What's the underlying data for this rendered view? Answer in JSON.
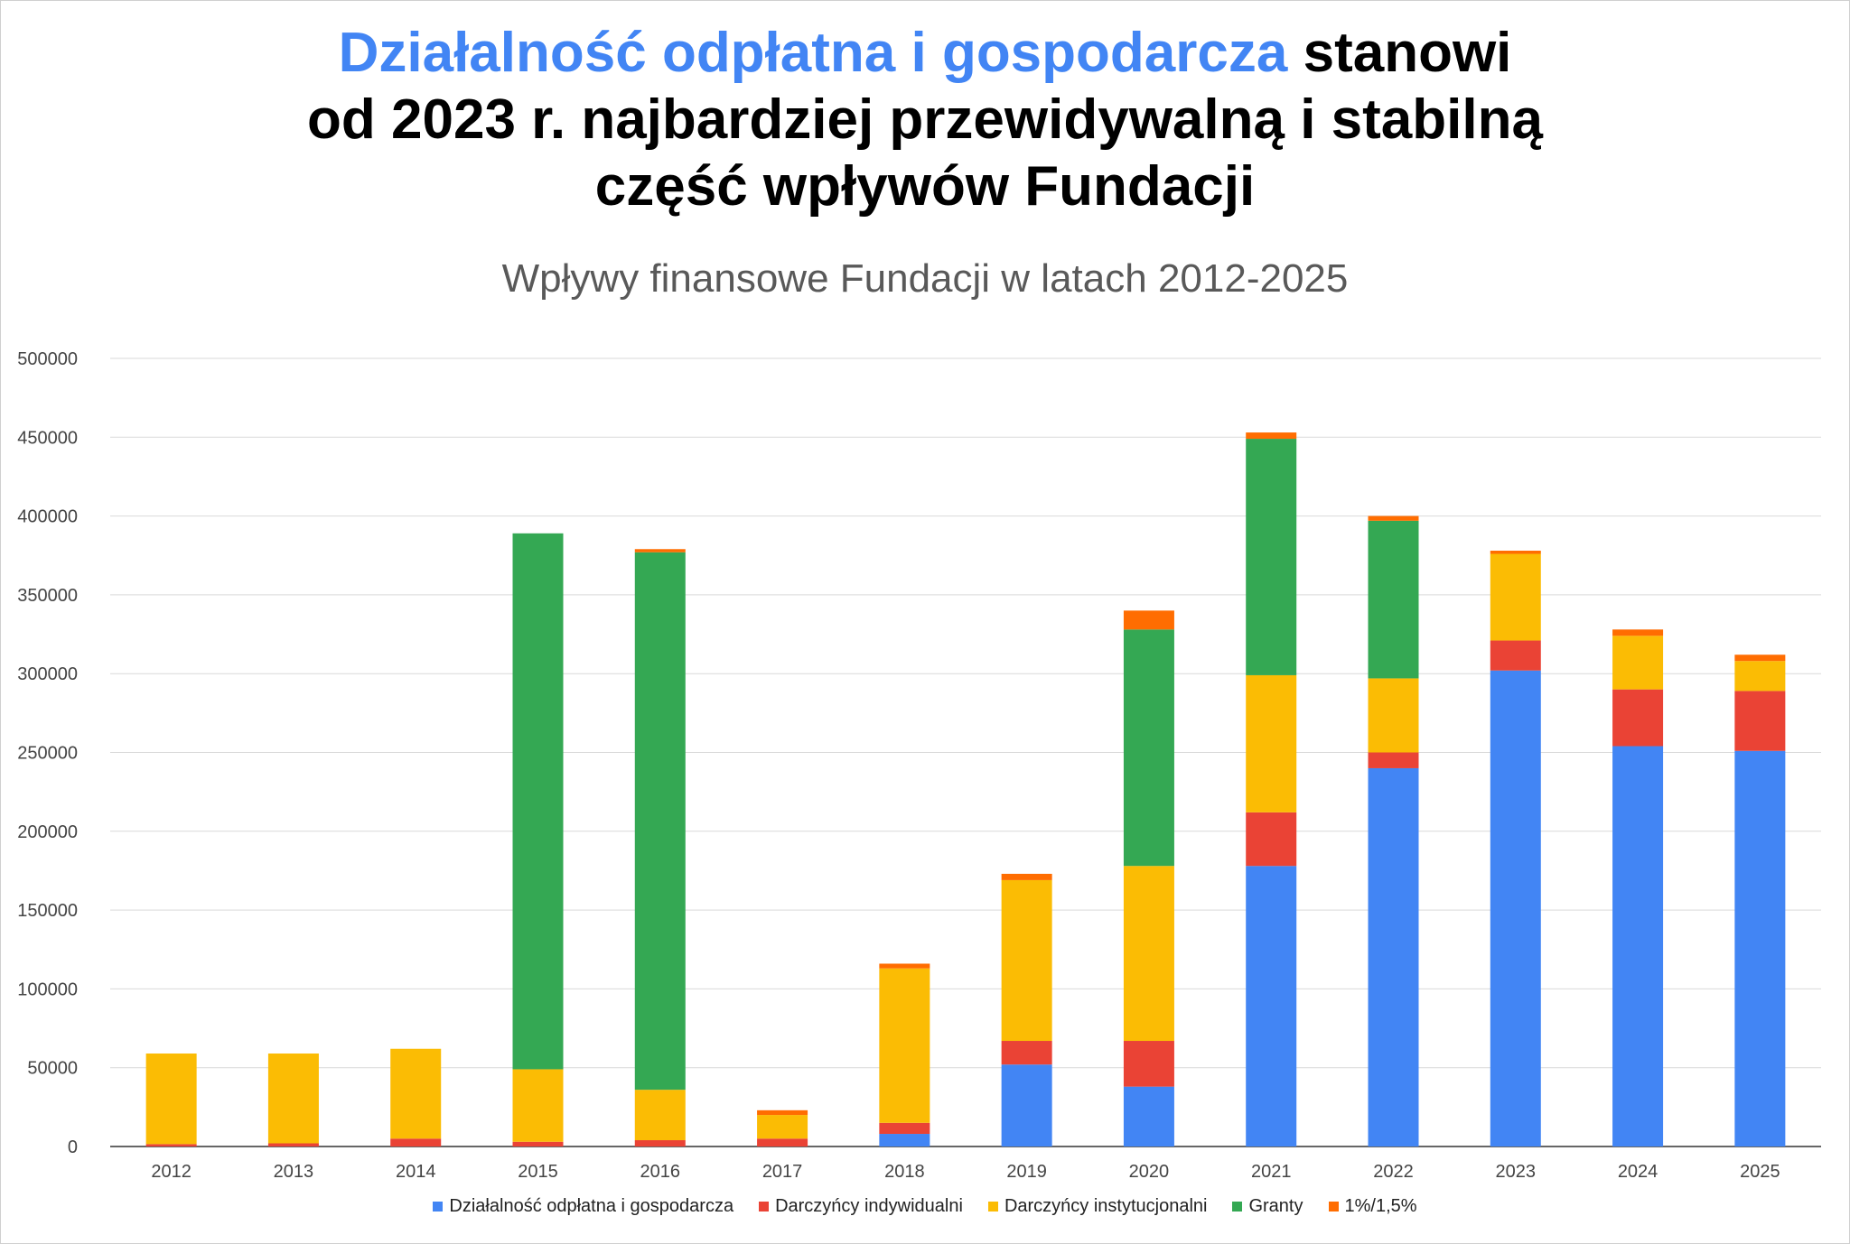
{
  "headline": {
    "highlight": "Działalność odpłatna i gospodarcza",
    "line1_rest": " stanowi",
    "line2": "od 2023 r. najbardziej przewidywalną i stabilną",
    "line3": "część wpływów Fundacji"
  },
  "colors": {
    "highlight": "#4285f4",
    "grid": "#d9d9d9"
  },
  "chart_data": {
    "type": "bar",
    "stacked": true,
    "title": "Wpływy finansowe Fundacji w latach 2012-2025",
    "xlabel": "",
    "ylabel": "",
    "ylim": [
      0,
      500000
    ],
    "yticks": [
      "0",
      "50000",
      "100000",
      "150000",
      "200000",
      "250000",
      "300000",
      "350000",
      "400000",
      "450000",
      "500000"
    ],
    "grid": true,
    "legend_position": "bottom",
    "categories": [
      "2012",
      "2013",
      "2014",
      "2015",
      "2016",
      "2017",
      "2018",
      "2019",
      "2020",
      "2021",
      "2022",
      "2023",
      "2024",
      "2025"
    ],
    "series": [
      {
        "name": "Działalność odpłatna i gospodarcza",
        "color": "#4285f4",
        "values": [
          0,
          0,
          0,
          0,
          0,
          0,
          8000,
          52000,
          38000,
          178000,
          240000,
          302000,
          254000,
          251000
        ]
      },
      {
        "name": "Darczyńcy indywidualni",
        "color": "#ea4335",
        "values": [
          1500,
          2000,
          5000,
          3000,
          4000,
          5000,
          7000,
          15000,
          29000,
          34000,
          10000,
          19000,
          36000,
          38000
        ]
      },
      {
        "name": "Darczyńcy instytucjonalni",
        "color": "#fbbc04",
        "values": [
          57500,
          57000,
          57000,
          46000,
          32000,
          15000,
          98000,
          102000,
          111000,
          87000,
          47000,
          55000,
          34000,
          19000
        ]
      },
      {
        "name": "Granty",
        "color": "#34a853",
        "values": [
          0,
          0,
          0,
          340000,
          341000,
          0,
          0,
          0,
          150000,
          150000,
          100000,
          0,
          0,
          0
        ]
      },
      {
        "name": "1%/1,5%",
        "color": "#ff6d01",
        "values": [
          0,
          0,
          0,
          0,
          2000,
          3000,
          3000,
          4000,
          12000,
          4000,
          3000,
          2000,
          4000,
          4000
        ]
      }
    ]
  }
}
